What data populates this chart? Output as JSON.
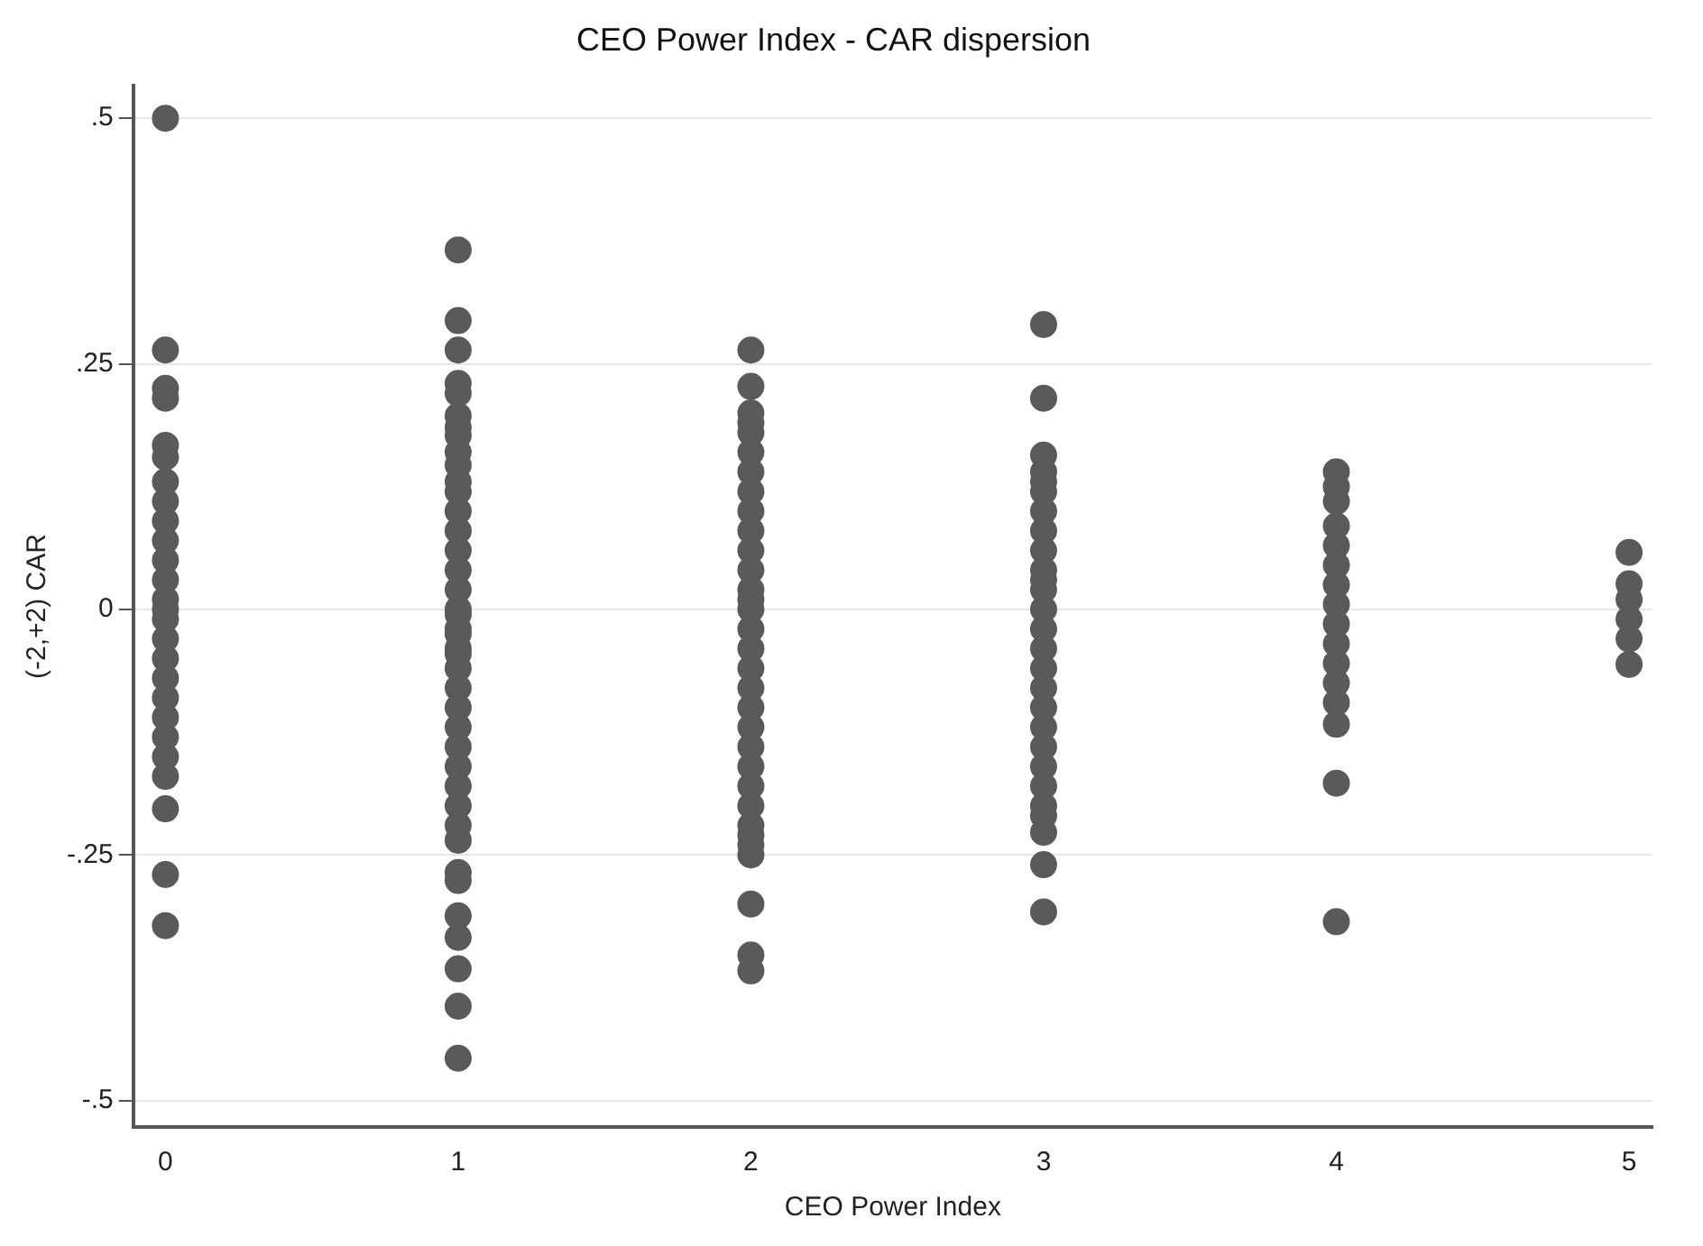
{
  "chart_data": {
    "type": "scatter",
    "title": "CEO Power Index - CAR dispersion",
    "xlabel": "CEO Power Index",
    "ylabel": "(-2,+2) CAR",
    "xlim": [
      -0.11,
      5.08
    ],
    "xticks": [
      0,
      1,
      2,
      3,
      4,
      5
    ],
    "ylim": [
      -0.527,
      0.533
    ],
    "yticks": [
      {
        "value": -0.5,
        "label": "-.5"
      },
      {
        "value": -0.25,
        "label": "-.25"
      },
      {
        "value": 0,
        "label": "0"
      },
      {
        "value": 0.25,
        "label": ".25"
      },
      {
        "value": 0.5,
        "label": ".5"
      }
    ],
    "grid": "y",
    "legend": false,
    "marker": "circle",
    "series": [
      {
        "color": "#5a5a5a",
        "x": [
          0,
          0,
          0,
          0,
          0,
          0,
          0,
          0,
          0,
          0,
          0,
          0,
          0,
          0,
          0,
          0,
          0,
          0,
          0,
          0,
          0,
          0,
          0,
          0,
          0,
          0,
          1,
          1,
          1,
          1,
          1,
          1,
          1,
          1,
          1,
          1,
          1,
          1,
          1,
          1,
          1,
          1,
          1,
          1,
          1,
          1,
          1,
          1,
          1,
          1,
          1,
          1,
          1,
          1,
          1,
          1,
          1,
          1,
          1,
          1,
          1,
          1,
          1,
          1,
          1,
          1,
          2,
          2,
          2,
          2,
          2,
          2,
          2,
          2,
          2,
          2,
          2,
          2,
          2,
          2,
          2,
          2,
          2,
          2,
          2,
          2,
          2,
          2,
          2,
          2,
          2,
          2,
          2,
          2,
          2,
          2,
          2,
          2,
          3,
          3,
          3,
          3,
          3,
          3,
          3,
          3,
          3,
          3,
          3,
          3,
          3,
          3,
          3,
          3,
          3,
          3,
          3,
          3,
          3,
          3,
          3,
          3,
          3,
          3,
          3,
          4,
          4,
          4,
          4,
          4,
          4,
          4,
          4,
          4,
          4,
          4,
          4,
          4,
          4,
          4,
          4,
          5,
          5,
          5,
          5,
          5,
          5
        ],
        "values": [
          0.5,
          0.264,
          0.225,
          0.215,
          0.167,
          0.155,
          0.13,
          0.11,
          0.09,
          0.07,
          0.05,
          0.03,
          0.01,
          -0.01,
          -0.03,
          -0.05,
          -0.07,
          -0.09,
          -0.11,
          -0.13,
          -0.15,
          -0.17,
          -0.203,
          -0.27,
          -0.322,
          0.0,
          0.366,
          0.294,
          0.264,
          0.23,
          0.22,
          0.197,
          0.185,
          0.177,
          0.147,
          0.12,
          0.1,
          0.08,
          0.06,
          0.04,
          0.02,
          0.0,
          -0.02,
          -0.04,
          -0.06,
          -0.08,
          -0.1,
          -0.12,
          -0.14,
          -0.16,
          -0.18,
          -0.2,
          -0.22,
          -0.235,
          -0.268,
          -0.276,
          -0.312,
          -0.334,
          -0.366,
          -0.404,
          -0.457,
          0.13,
          0.16,
          -0.005,
          -0.025,
          -0.045,
          0.264,
          0.227,
          0.2,
          0.18,
          0.16,
          0.14,
          0.12,
          0.1,
          0.08,
          0.06,
          0.04,
          0.02,
          0.0,
          -0.02,
          -0.04,
          -0.06,
          -0.08,
          -0.1,
          -0.12,
          -0.14,
          -0.16,
          -0.18,
          -0.2,
          -0.22,
          -0.24,
          -0.25,
          -0.3,
          -0.352,
          -0.368,
          0.19,
          0.01,
          -0.23,
          0.29,
          0.215,
          0.157,
          0.14,
          0.12,
          0.1,
          0.08,
          0.06,
          0.04,
          0.02,
          0.0,
          -0.02,
          -0.04,
          -0.06,
          -0.08,
          -0.1,
          -0.12,
          -0.14,
          -0.16,
          -0.18,
          -0.2,
          -0.227,
          -0.26,
          -0.308,
          0.13,
          0.03,
          -0.21,
          0.14,
          0.125,
          0.11,
          0.085,
          0.065,
          0.045,
          0.025,
          0.005,
          -0.015,
          -0.035,
          -0.055,
          -0.075,
          -0.095,
          -0.117,
          -0.177,
          -0.318,
          0.058,
          0.026,
          0.01,
          -0.01,
          -0.03,
          -0.056
        ]
      }
    ]
  }
}
